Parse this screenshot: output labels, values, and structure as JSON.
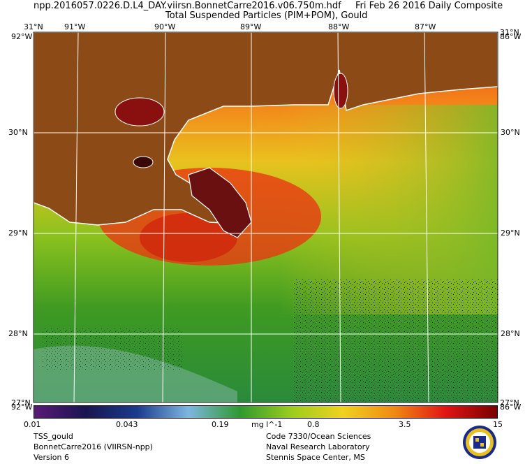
{
  "header": {
    "filename": "npp.2016057.0226.D.L4_DAY.viirsn.BonnetCarre2016.v06.750m.hdf",
    "date": "Fri Feb 26 2016 Daily Composite",
    "product": "Total Suspended Particles (PIM+POM), Gould"
  },
  "map": {
    "top_lon_labels": [
      "91°W",
      "90°W",
      "89°W",
      "88°W",
      "87°W"
    ],
    "corner_labels": {
      "top_left_lat": "31°N",
      "top_left_lon": "92°W",
      "top_right_lat": "31°N",
      "top_right_lon": "86°W",
      "bottom_left_lat": "27°N",
      "bottom_left_lon": "92°W",
      "bottom_right_lat": "27°N",
      "bottom_right_lon": "86°W"
    },
    "lat_labels": [
      "30°N",
      "29°N",
      "28°N"
    ],
    "land_color": "#8b4a16",
    "coast_color": "#ffffff",
    "grid_color": "#ffffff"
  },
  "colorbar": {
    "ticks": [
      "0.01",
      "0.043",
      "0.19",
      "0.8",
      "3.5",
      "15"
    ],
    "units": "mg l^-1",
    "colors": [
      "#5a1a78",
      "#1a1450",
      "#1a3c8c",
      "#7eb6e0",
      "#2e9a2e",
      "#9ccc1e",
      "#f0d21e",
      "#f08a14",
      "#e01414",
      "#780000"
    ]
  },
  "footer": {
    "left": [
      "TSS_gould",
      "BonnetCarre2016 (VIIRSN-npp)",
      "Version 6"
    ],
    "right": [
      "Code 7330/Ocean Sciences",
      "Naval Research Laboratory",
      "Stennis Space Center, MS"
    ]
  }
}
